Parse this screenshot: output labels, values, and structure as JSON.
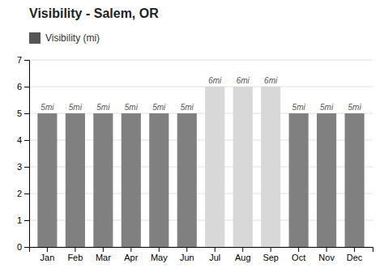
{
  "chart_data": {
    "type": "bar",
    "title": "Visibility - Salem, OR",
    "categories": [
      "Jan",
      "Feb",
      "Mar",
      "Apr",
      "May",
      "Jun",
      "Jul",
      "Aug",
      "Sep",
      "Oct",
      "Nov",
      "Dec"
    ],
    "series": [
      {
        "name": "Visibility (mi)",
        "color": "#555555",
        "colors": [
          "#808080",
          "#808080",
          "#808080",
          "#808080",
          "#808080",
          "#808080",
          "#d8d8d8",
          "#d8d8d8",
          "#d8d8d8",
          "#808080",
          "#808080",
          "#808080"
        ],
        "values": [
          5,
          5,
          5,
          5,
          5,
          5,
          6,
          6,
          6,
          5,
          5,
          5
        ],
        "value_labels": [
          "5mi",
          "5mi",
          "5mi",
          "5mi",
          "5mi",
          "5mi",
          "6mi",
          "6mi",
          "6mi",
          "5mi",
          "5mi",
          "5mi"
        ]
      }
    ],
    "ylim": [
      0,
      7
    ],
    "yticks": [
      0,
      1,
      2,
      3,
      4,
      5,
      6,
      7
    ],
    "grid": true,
    "legend": "top-left",
    "data_labels": true
  }
}
